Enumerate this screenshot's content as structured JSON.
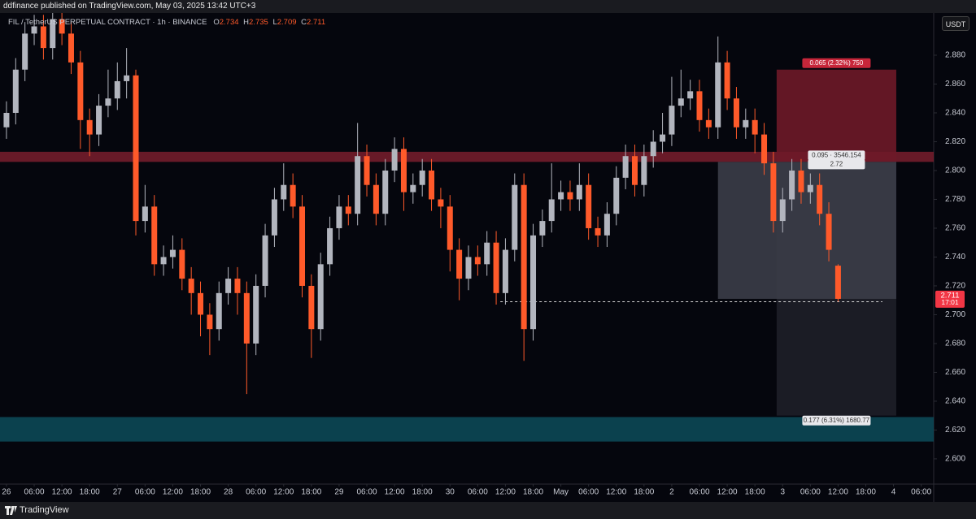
{
  "header": {
    "publisher": "ddfinance published on TradingView.com, May 03, 2025 13:42 UTC+3"
  },
  "footer": {
    "brand": "TradingView"
  },
  "chart_data": {
    "type": "candlestick",
    "title": "FIL / TetherUS PERPETUAL CONTRACT · 1h · BINANCE",
    "ohlc_labels": [
      "O",
      "H",
      "L",
      "C"
    ],
    "currency": "USDT",
    "countdown": "17:01",
    "up_color": "#b2b5be",
    "down_color": "#ff5a2a",
    "grid": false,
    "x": [
      "2025-04-26T00:00",
      "2025-04-26T02:00",
      "2025-04-26T04:00",
      "2025-04-26T06:00",
      "2025-04-26T08:00",
      "2025-04-26T10:00",
      "2025-04-26T12:00",
      "2025-04-26T14:00",
      "2025-04-26T16:00",
      "2025-04-26T18:00",
      "2025-04-26T20:00",
      "2025-04-26T22:00",
      "2025-04-27T00:00",
      "2025-04-27T02:00",
      "2025-04-27T04:00",
      "2025-04-27T06:00",
      "2025-04-27T08:00",
      "2025-04-27T10:00",
      "2025-04-27T12:00",
      "2025-04-27T14:00",
      "2025-04-27T16:00",
      "2025-04-27T18:00",
      "2025-04-27T20:00",
      "2025-04-27T22:00",
      "2025-04-28T00:00",
      "2025-04-28T02:00",
      "2025-04-28T04:00",
      "2025-04-28T06:00",
      "2025-04-28T08:00",
      "2025-04-28T10:00",
      "2025-04-28T12:00",
      "2025-04-28T14:00",
      "2025-04-28T16:00",
      "2025-04-28T18:00",
      "2025-04-28T20:00",
      "2025-04-28T22:00",
      "2025-04-29T00:00",
      "2025-04-29T02:00",
      "2025-04-29T04:00",
      "2025-04-29T06:00",
      "2025-04-29T08:00",
      "2025-04-29T10:00",
      "2025-04-29T12:00",
      "2025-04-29T14:00",
      "2025-04-29T16:00",
      "2025-04-29T18:00",
      "2025-04-29T20:00",
      "2025-04-29T22:00",
      "2025-04-30T00:00",
      "2025-04-30T02:00",
      "2025-04-30T04:00",
      "2025-04-30T06:00",
      "2025-04-30T08:00",
      "2025-04-30T10:00",
      "2025-04-30T12:00",
      "2025-04-30T14:00",
      "2025-04-30T16:00",
      "2025-04-30T18:00",
      "2025-04-30T20:00",
      "2025-04-30T22:00",
      "2025-05-01T00:00",
      "2025-05-01T02:00",
      "2025-05-01T04:00",
      "2025-05-01T06:00",
      "2025-05-01T08:00",
      "2025-05-01T10:00",
      "2025-05-01T12:00",
      "2025-05-01T14:00",
      "2025-05-01T16:00",
      "2025-05-01T18:00",
      "2025-05-01T20:00",
      "2025-05-01T22:00",
      "2025-05-02T00:00",
      "2025-05-02T02:00",
      "2025-05-02T04:00",
      "2025-05-02T06:00",
      "2025-05-02T08:00",
      "2025-05-02T10:00",
      "2025-05-02T12:00",
      "2025-05-02T14:00",
      "2025-05-02T16:00",
      "2025-05-02T18:00",
      "2025-05-02T20:00",
      "2025-05-02T22:00",
      "2025-05-03T00:00",
      "2025-05-03T02:00",
      "2025-05-03T04:00",
      "2025-05-03T06:00",
      "2025-05-03T08:00",
      "2025-05-03T10:00",
      "2025-05-03T12:00"
    ],
    "open": [
      2.83,
      2.84,
      2.87,
      2.895,
      2.9,
      2.885,
      2.905,
      2.895,
      2.875,
      2.835,
      2.825,
      2.845,
      2.85,
      2.862,
      2.866,
      2.765,
      2.775,
      2.735,
      2.74,
      2.745,
      2.725,
      2.715,
      2.7,
      2.69,
      2.715,
      2.725,
      2.715,
      2.68,
      2.72,
      2.755,
      2.78,
      2.79,
      2.775,
      2.72,
      2.69,
      2.735,
      2.76,
      2.775,
      2.77,
      2.81,
      2.79,
      2.77,
      2.8,
      2.815,
      2.785,
      2.79,
      2.8,
      2.78,
      2.775,
      2.745,
      2.725,
      2.74,
      2.735,
      2.75,
      2.715,
      2.745,
      2.79,
      2.69,
      2.755,
      2.765,
      2.78,
      2.785,
      2.78,
      2.79,
      2.76,
      2.755,
      2.77,
      2.795,
      2.81,
      2.79,
      2.81,
      2.82,
      2.825,
      2.845,
      2.85,
      2.855,
      2.835,
      2.83,
      2.875,
      2.85,
      2.83,
      2.835,
      2.825,
      2.805,
      2.765,
      2.78,
      2.8,
      2.785,
      2.79,
      2.77,
      2.734
    ],
    "high": [
      2.848,
      2.878,
      2.903,
      2.908,
      2.908,
      2.913,
      2.913,
      2.903,
      2.883,
      2.843,
      2.853,
      2.87,
      2.875,
      2.885,
      2.87,
      2.79,
      2.783,
      2.748,
      2.755,
      2.753,
      2.733,
      2.723,
      2.708,
      2.723,
      2.733,
      2.733,
      2.723,
      2.728,
      2.763,
      2.788,
      2.805,
      2.798,
      2.783,
      2.728,
      2.743,
      2.768,
      2.783,
      2.783,
      2.833,
      2.818,
      2.798,
      2.808,
      2.823,
      2.823,
      2.798,
      2.808,
      2.808,
      2.788,
      2.783,
      2.753,
      2.748,
      2.748,
      2.758,
      2.758,
      2.753,
      2.798,
      2.798,
      2.763,
      2.773,
      2.805,
      2.793,
      2.793,
      2.805,
      2.798,
      2.768,
      2.778,
      2.803,
      2.818,
      2.818,
      2.818,
      2.828,
      2.84,
      2.865,
      2.87,
      2.863,
      2.863,
      2.843,
      2.893,
      2.883,
      2.858,
      2.843,
      2.843,
      2.833,
      2.813,
      2.788,
      2.808,
      2.808,
      2.798,
      2.798,
      2.778,
      2.735
    ],
    "low": [
      2.822,
      2.832,
      2.862,
      2.887,
      2.877,
      2.877,
      2.887,
      2.867,
      2.815,
      2.81,
      2.817,
      2.837,
      2.842,
      2.85,
      2.755,
      2.757,
      2.727,
      2.727,
      2.732,
      2.717,
      2.7,
      2.685,
      2.672,
      2.682,
      2.707,
      2.7,
      2.645,
      2.672,
      2.712,
      2.747,
      2.772,
      2.767,
      2.712,
      2.67,
      2.682,
      2.727,
      2.752,
      2.762,
      2.762,
      2.782,
      2.762,
      2.762,
      2.792,
      2.772,
      2.777,
      2.782,
      2.772,
      2.76,
      2.73,
      2.71,
      2.717,
      2.727,
      2.727,
      2.707,
      2.707,
      2.737,
      2.668,
      2.682,
      2.747,
      2.757,
      2.772,
      2.772,
      2.772,
      2.752,
      2.747,
      2.747,
      2.762,
      2.787,
      2.782,
      2.782,
      2.802,
      2.812,
      2.817,
      2.837,
      2.842,
      2.827,
      2.822,
      2.822,
      2.842,
      2.822,
      2.822,
      2.812,
      2.797,
      2.757,
      2.757,
      2.772,
      2.777,
      2.777,
      2.762,
      2.737,
      2.709
    ],
    "close": [
      2.84,
      2.87,
      2.895,
      2.9,
      2.885,
      2.905,
      2.895,
      2.875,
      2.835,
      2.825,
      2.845,
      2.85,
      2.862,
      2.866,
      2.765,
      2.775,
      2.735,
      2.74,
      2.745,
      2.725,
      2.715,
      2.7,
      2.69,
      2.715,
      2.725,
      2.715,
      2.68,
      2.72,
      2.755,
      2.78,
      2.79,
      2.775,
      2.72,
      2.69,
      2.735,
      2.76,
      2.775,
      2.77,
      2.81,
      2.79,
      2.77,
      2.8,
      2.815,
      2.785,
      2.79,
      2.8,
      2.78,
      2.775,
      2.745,
      2.725,
      2.74,
      2.735,
      2.75,
      2.715,
      2.745,
      2.79,
      2.69,
      2.755,
      2.765,
      2.78,
      2.785,
      2.78,
      2.79,
      2.76,
      2.755,
      2.77,
      2.795,
      2.81,
      2.79,
      2.81,
      2.82,
      2.825,
      2.845,
      2.85,
      2.855,
      2.835,
      2.83,
      2.875,
      2.85,
      2.83,
      2.835,
      2.825,
      2.805,
      2.765,
      2.78,
      2.8,
      2.785,
      2.79,
      2.77,
      2.745,
      2.711
    ],
    "xlim": [
      "2025-04-25T22:36",
      "2025-05-04T08:42"
    ],
    "ylim": [
      2.5825,
      2.9183
    ],
    "yticks": [
      {
        "value": 2.88,
        "label": "2.880"
      },
      {
        "value": 2.86,
        "label": "2.860"
      },
      {
        "value": 2.84,
        "label": "2.840"
      },
      {
        "value": 2.82,
        "label": "2.820"
      },
      {
        "value": 2.8,
        "label": "2.800"
      },
      {
        "value": 2.78,
        "label": "2.780"
      },
      {
        "value": 2.76,
        "label": "2.760"
      },
      {
        "value": 2.74,
        "label": "2.740"
      },
      {
        "value": 2.72,
        "label": "2.720"
      },
      {
        "value": 2.7,
        "label": "2.700"
      },
      {
        "value": 2.68,
        "label": "2.680"
      },
      {
        "value": 2.66,
        "label": "2.660"
      },
      {
        "value": 2.64,
        "label": "2.640"
      },
      {
        "value": 2.62,
        "label": "2.620"
      },
      {
        "value": 2.6,
        "label": "2.600"
      }
    ],
    "xticks": [
      {
        "value": "2025-04-26T00:00",
        "label": "26"
      },
      {
        "value": "2025-04-26T06:00",
        "label": "06:00"
      },
      {
        "value": "2025-04-26T12:00",
        "label": "12:00"
      },
      {
        "value": "2025-04-26T18:00",
        "label": "18:00"
      },
      {
        "value": "2025-04-27T00:00",
        "label": "27"
      },
      {
        "value": "2025-04-27T06:00",
        "label": "06:00"
      },
      {
        "value": "2025-04-27T12:00",
        "label": "12:00"
      },
      {
        "value": "2025-04-27T18:00",
        "label": "18:00"
      },
      {
        "value": "2025-04-28T00:00",
        "label": "28"
      },
      {
        "value": "2025-04-28T06:00",
        "label": "06:00"
      },
      {
        "value": "2025-04-28T12:00",
        "label": "12:00"
      },
      {
        "value": "2025-04-28T18:00",
        "label": "18:00"
      },
      {
        "value": "2025-04-29T00:00",
        "label": "29"
      },
      {
        "value": "2025-04-29T06:00",
        "label": "06:00"
      },
      {
        "value": "2025-04-29T12:00",
        "label": "12:00"
      },
      {
        "value": "2025-04-29T18:00",
        "label": "18:00"
      },
      {
        "value": "2025-04-30T00:00",
        "label": "30"
      },
      {
        "value": "2025-04-30T06:00",
        "label": "06:00"
      },
      {
        "value": "2025-04-30T12:00",
        "label": "12:00"
      },
      {
        "value": "2025-04-30T18:00",
        "label": "18:00"
      },
      {
        "value": "2025-05-01T00:00",
        "label": "May"
      },
      {
        "value": "2025-05-01T06:00",
        "label": "06:00"
      },
      {
        "value": "2025-05-01T12:00",
        "label": "12:00"
      },
      {
        "value": "2025-05-01T18:00",
        "label": "18:00"
      },
      {
        "value": "2025-05-02T00:00",
        "label": "2"
      },
      {
        "value": "2025-05-02T06:00",
        "label": "06:00"
      },
      {
        "value": "2025-05-02T12:00",
        "label": "12:00"
      },
      {
        "value": "2025-05-02T18:00",
        "label": "18:00"
      },
      {
        "value": "2025-05-03T00:00",
        "label": "3"
      },
      {
        "value": "2025-05-03T06:00",
        "label": "06:00"
      },
      {
        "value": "2025-05-03T12:00",
        "label": "12:00"
      },
      {
        "value": "2025-05-03T18:00",
        "label": "18:00"
      },
      {
        "value": "2025-05-04T00:00",
        "label": "4"
      },
      {
        "value": "2025-05-04T06:00",
        "label": "06:00"
      }
    ],
    "zones": [
      {
        "top": 2.813,
        "bottom": 2.806,
        "color": "#7a1f2e"
      },
      {
        "top": 2.629,
        "bottom": 2.612,
        "color": "#0d4c5a"
      }
    ],
    "hline": {
      "price": 2.709,
      "start": "2025-04-30T10:54",
      "end": "2025-05-03T21:36"
    },
    "position": {
      "start": "2025-05-02T22:42",
      "end": "2025-05-04T00:36",
      "entry": 2.806,
      "stop": 2.87,
      "target": 2.63,
      "stop_color": "#6e1a28",
      "target_color": "#1c1d27",
      "open_color": "#3b3d48",
      "stop_label": "0.065 (2.32%) 750",
      "open_label": [
        "0.095 · 3546.154",
        "2.72"
      ],
      "target_label": "0.177 (6.31%) 1680.77"
    }
  }
}
